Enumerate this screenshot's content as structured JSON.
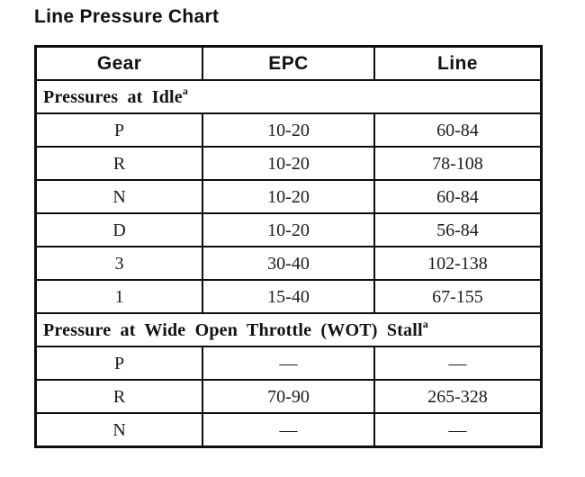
{
  "title": "Line Pressure Chart",
  "table": {
    "columns": [
      "Gear",
      "EPC",
      "Line"
    ],
    "sections": [
      {
        "header": "Pressures at Idle",
        "footnote_marker": "a",
        "rows": [
          {
            "gear": "P",
            "epc": "10-20",
            "line": "60-84"
          },
          {
            "gear": "R",
            "epc": "10-20",
            "line": "78-108"
          },
          {
            "gear": "N",
            "epc": "10-20",
            "line": "60-84"
          },
          {
            "gear": "D",
            "epc": "10-20",
            "line": "56-84"
          },
          {
            "gear": "3",
            "epc": "30-40",
            "line": "102-138"
          },
          {
            "gear": "1",
            "epc": "15-40",
            "line": "67-155"
          }
        ]
      },
      {
        "header": "Pressure at Wide Open Throttle (WOT) Stall",
        "footnote_marker": "a",
        "rows": [
          {
            "gear": "P",
            "epc": "—",
            "line": "—"
          },
          {
            "gear": "R",
            "epc": "70-90",
            "line": "265-328"
          },
          {
            "gear": "N",
            "epc": "—",
            "line": "—"
          }
        ]
      }
    ]
  },
  "colors": {
    "background": "#ffffff",
    "border": "#0d0d0d",
    "text": "#1b1b1b"
  }
}
